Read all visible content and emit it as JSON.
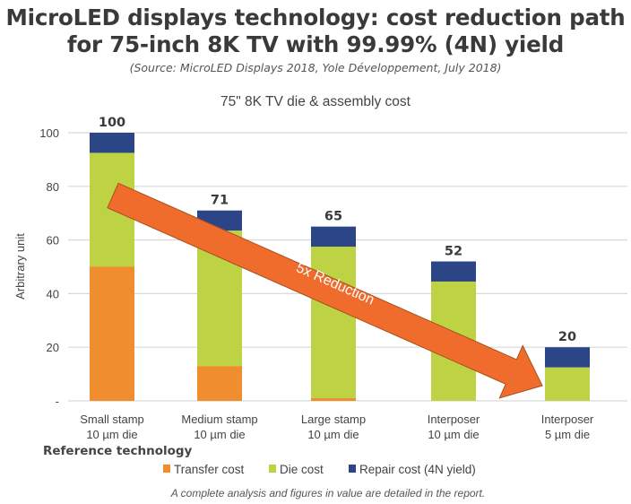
{
  "header": {
    "title_line1": "MicroLED displays technology: cost reduction path",
    "title_line2": "for 75-inch 8K TV with 99.99% (4N) yield",
    "source": "(Source: MicroLED Displays 2018, Yole Développement, July 2018)"
  },
  "chart_data": {
    "type": "bar",
    "stacked": true,
    "title": "75\" 8K TV die & assembly cost",
    "xlabel": "",
    "ylabel": "Arbitrary unit",
    "ylim": [
      0,
      100
    ],
    "yticks": [
      0,
      20,
      40,
      60,
      80,
      100
    ],
    "ytick_labels": [
      "-",
      "20",
      "40",
      "60",
      "80",
      "100"
    ],
    "grid": true,
    "categories": [
      [
        "Small stamp",
        "10 µm die"
      ],
      [
        "Medium stamp",
        "10 µm die"
      ],
      [
        "Large stamp",
        "10 µm die"
      ],
      [
        "Interposer",
        "10 µm die"
      ],
      [
        "Interposer",
        "5 µm die"
      ]
    ],
    "series": [
      {
        "name": "Transfer cost",
        "color": "#f08e2f",
        "values": [
          50,
          13,
          1,
          0,
          0
        ]
      },
      {
        "name": "Die cost",
        "color": "#bed343",
        "values": [
          42.5,
          50.5,
          56.5,
          44.5,
          12.5
        ]
      },
      {
        "name": "Repair cost (4N yield)",
        "color": "#2c4586",
        "values": [
          7.5,
          7.5,
          7.5,
          7.5,
          7.5
        ]
      }
    ],
    "totals": [
      100,
      71,
      65,
      52,
      20
    ],
    "total_labels": [
      "100",
      "71",
      "65",
      "52",
      "20"
    ],
    "annotation": {
      "text": "5x Reduction",
      "from_category": 0,
      "to_category": 4,
      "color": "#ef6c2c"
    },
    "reference_label": "Reference technology",
    "legend_position": "bottom"
  },
  "footer": "A complete analysis and figures in value are detailed in the report."
}
